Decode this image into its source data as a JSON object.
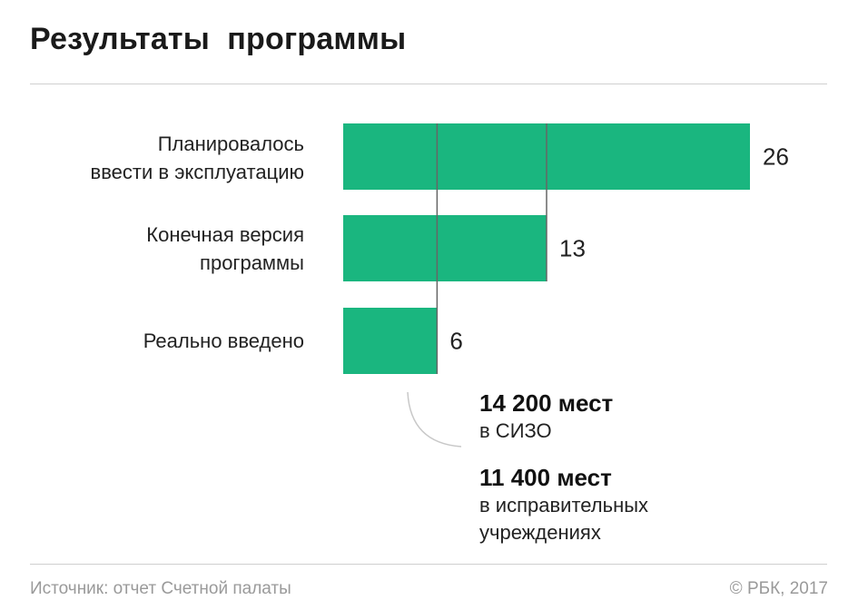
{
  "title": "Результаты  программы",
  "chart_data": {
    "type": "bar",
    "orientation": "horizontal",
    "categories": [
      "Планировалось ввести в эксплуатацию",
      "Конечная версия программы",
      "Реально введено"
    ],
    "category_lines": [
      [
        "Планировалось",
        "ввести в эксплуатацию"
      ],
      [
        "Конечная версия",
        "программы"
      ],
      [
        "Реально введено"
      ]
    ],
    "values": [
      26,
      13,
      6
    ],
    "value_labels": [
      "26",
      "13",
      "6"
    ],
    "bar_color": "#1ab67f",
    "reference_line_color": "#666666",
    "xlim": [
      0,
      26
    ],
    "annotations": [
      {
        "strong": "14 200 мест",
        "sub": "в СИЗО"
      },
      {
        "strong": "11 400 мест",
        "sub": "в исправительных учреждениях",
        "sub_lines": [
          "в исправительных",
          "учреждениях"
        ]
      }
    ]
  },
  "footer": {
    "source": "Источник: отчет Счетной палаты",
    "copyright": "© РБК, 2017"
  }
}
